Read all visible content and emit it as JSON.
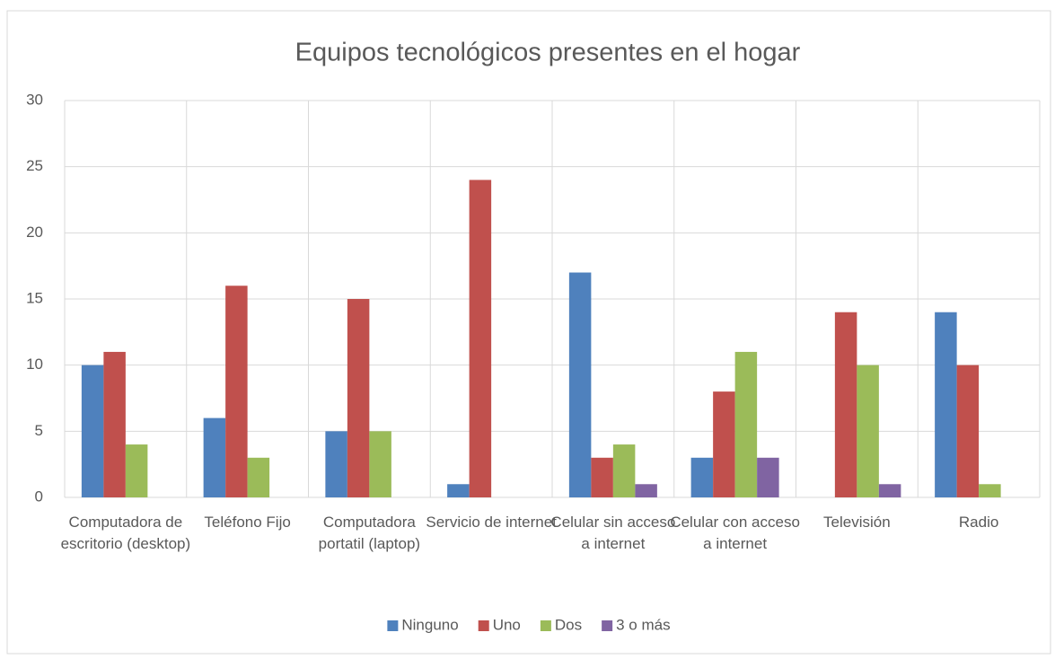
{
  "chart_data": {
    "type": "bar",
    "title": "Equipos tecnológicos presentes en el hogar",
    "categories": [
      "Computadora de escritorio (desktop)",
      "Teléfono Fijo",
      "Computadora portatil (laptop)",
      "Servicio de internet",
      "Celular sin acceso a internet",
      "Celular con acceso a internet",
      "Televisión",
      "Radio"
    ],
    "series": [
      {
        "name": "Ninguno",
        "color": "#4f81bd",
        "values": [
          10,
          6,
          5,
          1,
          17,
          3,
          0,
          14
        ]
      },
      {
        "name": "Uno",
        "color": "#c0504d",
        "values": [
          11,
          16,
          15,
          24,
          3,
          8,
          14,
          10
        ]
      },
      {
        "name": "Dos",
        "color": "#9bbb59",
        "values": [
          4,
          3,
          5,
          0,
          4,
          11,
          10,
          1
        ]
      },
      {
        "name": "3 o más",
        "color": "#8064a2",
        "values": [
          0,
          0,
          0,
          0,
          1,
          3,
          1,
          0
        ]
      }
    ],
    "ylim": [
      0,
      30
    ],
    "yticks": [
      0,
      5,
      10,
      15,
      20,
      25,
      30
    ],
    "grid": true,
    "legend": "bottom"
  }
}
